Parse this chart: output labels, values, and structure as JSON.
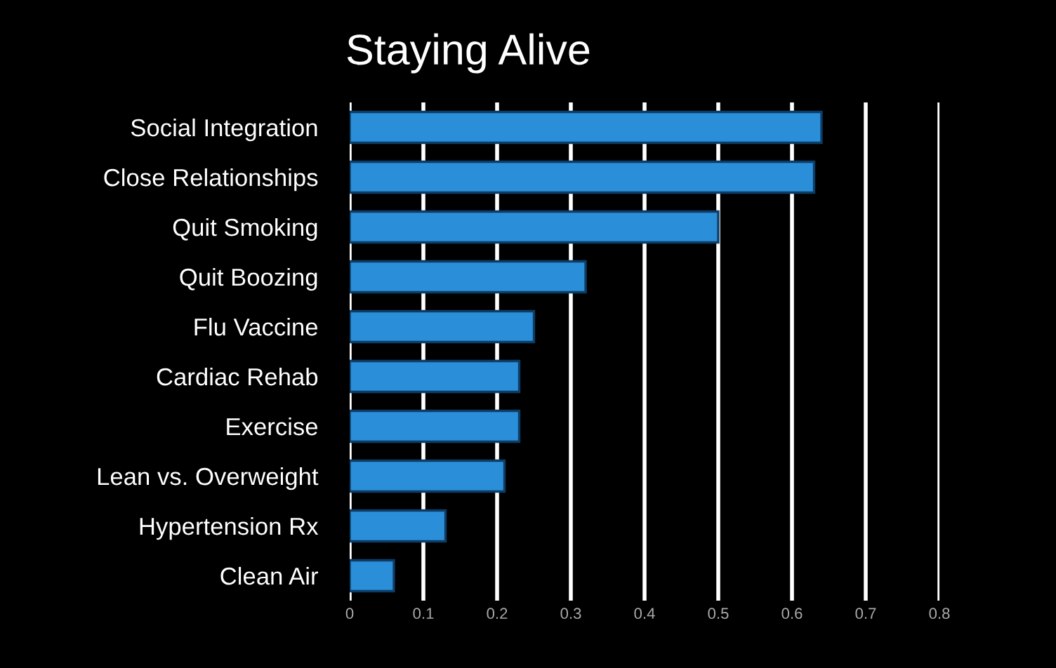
{
  "chart_data": {
    "type": "bar",
    "orientation": "horizontal",
    "title": "Staying Alive",
    "categories": [
      "Social Integration",
      "Close Relationships",
      "Quit Smoking",
      "Quit Boozing",
      "Flu Vaccine",
      "Cardiac Rehab",
      "Exercise",
      "Lean vs. Overweight",
      "Hypertension Rx",
      "Clean Air"
    ],
    "values": [
      0.64,
      0.63,
      0.5,
      0.32,
      0.25,
      0.23,
      0.23,
      0.21,
      0.13,
      0.06
    ],
    "color": "#2a8fd8",
    "xlim": [
      0,
      0.8
    ],
    "xticks": [
      0,
      0.1,
      0.2,
      0.3,
      0.4,
      0.5,
      0.6,
      0.7,
      0.8
    ],
    "grid": "x",
    "legend": false
  }
}
